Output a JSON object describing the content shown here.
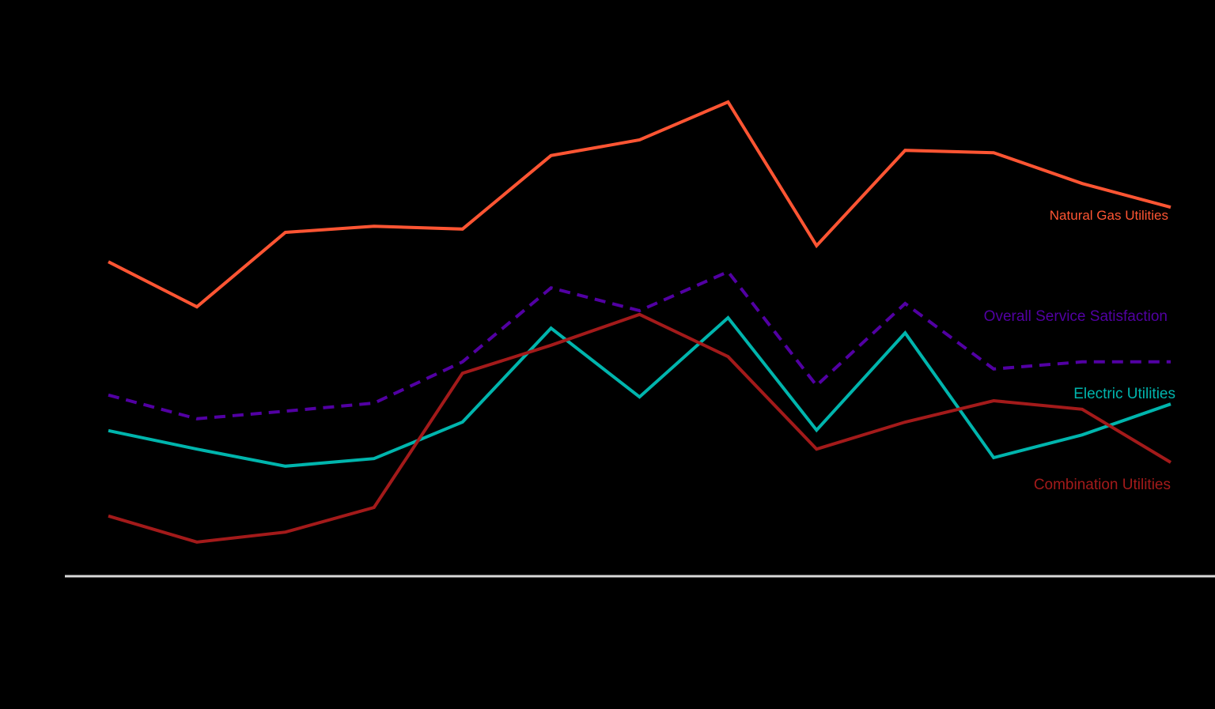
{
  "chart_data": {
    "type": "line",
    "title": "",
    "xlabel": "",
    "ylabel": "",
    "x": [
      1,
      2,
      3,
      4,
      5,
      6,
      7,
      8,
      9,
      10,
      11,
      12,
      13
    ],
    "ylim": [
      0,
      100
    ],
    "grid": false,
    "legend_position": "inline-right",
    "note": "No axis tick labels are visible; values are relative estimates (baseline = 0, peak = 100).",
    "series": [
      {
        "name": "Natural Gas Utilities",
        "color": "#FF5533",
        "dash": "solid",
        "values": [
          66.3,
          56.8,
          72.5,
          73.8,
          73.2,
          88.7,
          92.0,
          100.0,
          69.7,
          89.8,
          89.3,
          82.8,
          77.8
        ]
      },
      {
        "name": "Overall Service Satisfaction",
        "color": "#5200A3",
        "dash": "dashed",
        "values": [
          38.2,
          33.2,
          34.8,
          36.5,
          45.2,
          60.8,
          56.0,
          64.2,
          40.2,
          57.5,
          43.7,
          45.2,
          45.2
        ]
      },
      {
        "name": "Electric Utilities",
        "color": "#00B5AD",
        "dash": "solid",
        "values": [
          30.7,
          26.8,
          23.2,
          24.8,
          32.5,
          52.3,
          37.8,
          54.5,
          30.8,
          51.3,
          25.0,
          29.8,
          36.3
        ]
      },
      {
        "name": "Combination Utilities",
        "color": "#A31A1A",
        "dash": "solid",
        "values": [
          12.7,
          7.2,
          9.3,
          14.5,
          42.8,
          48.7,
          55.2,
          46.3,
          26.8,
          32.5,
          37.0,
          35.2,
          24.0
        ]
      }
    ]
  },
  "labels": {
    "natural_gas": "Natural Gas Utilities",
    "overall": "Overall Service Satisfaction",
    "electric": "Electric Utilities",
    "combination": "Combination Utilities"
  },
  "colors": {
    "background": "#000000",
    "axis": "#D9D9D9"
  }
}
